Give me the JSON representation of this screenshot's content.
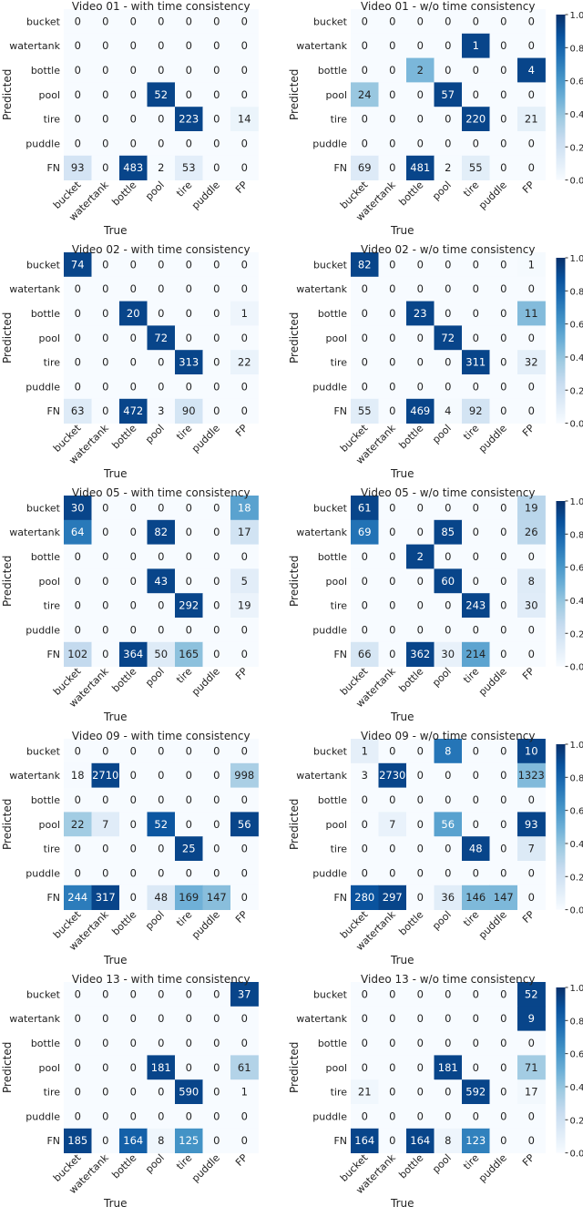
{
  "chart_data": [
    {
      "type": "heatmap",
      "title": "Video 01 - with time consistency",
      "xlabel": "True",
      "ylabel": "Predicted",
      "x_categories": [
        "bucket",
        "watertank",
        "bottle",
        "pool",
        "tire",
        "puddle",
        "FP"
      ],
      "y_categories": [
        "bucket",
        "watertank",
        "bottle",
        "pool",
        "tire",
        "puddle",
        "FN"
      ],
      "values": [
        [
          0,
          0,
          0,
          0,
          0,
          0,
          0
        ],
        [
          0,
          0,
          0,
          0,
          0,
          0,
          0
        ],
        [
          0,
          0,
          0,
          0,
          0,
          0,
          0
        ],
        [
          0,
          0,
          0,
          52,
          0,
          0,
          0
        ],
        [
          0,
          0,
          0,
          0,
          223,
          0,
          14
        ],
        [
          0,
          0,
          0,
          0,
          0,
          0,
          0
        ],
        [
          93,
          0,
          483,
          2,
          53,
          0,
          0
        ]
      ],
      "colorbar": false
    },
    {
      "type": "heatmap",
      "title": "Video 01 - w/o time consistency",
      "xlabel": "True",
      "ylabel": "Predicted",
      "x_categories": [
        "bucket",
        "watertank",
        "bottle",
        "pool",
        "tire",
        "puddle",
        "FP"
      ],
      "y_categories": [
        "bucket",
        "watertank",
        "bottle",
        "pool",
        "tire",
        "puddle",
        "FN"
      ],
      "values": [
        [
          0,
          0,
          0,
          0,
          0,
          0,
          0
        ],
        [
          0,
          0,
          0,
          0,
          1,
          0,
          0
        ],
        [
          0,
          0,
          2,
          0,
          0,
          0,
          4
        ],
        [
          24,
          0,
          0,
          57,
          0,
          0,
          0
        ],
        [
          0,
          0,
          0,
          0,
          220,
          0,
          21
        ],
        [
          0,
          0,
          0,
          0,
          0,
          0,
          0
        ],
        [
          69,
          0,
          481,
          2,
          55,
          0,
          0
        ]
      ],
      "colorbar": true,
      "colorbar_ticks": [
        "1.0",
        "0.8",
        "0.6",
        "0.4",
        "0.2",
        "0.0"
      ]
    },
    {
      "type": "heatmap",
      "title": "Video 02 - with time consistency",
      "xlabel": "True",
      "ylabel": "Predicted",
      "x_categories": [
        "bucket",
        "watertank",
        "bottle",
        "pool",
        "tire",
        "puddle",
        "FP"
      ],
      "y_categories": [
        "bucket",
        "watertank",
        "bottle",
        "pool",
        "tire",
        "puddle",
        "FN"
      ],
      "values": [
        [
          74,
          0,
          0,
          0,
          0,
          0,
          0
        ],
        [
          0,
          0,
          0,
          0,
          0,
          0,
          0
        ],
        [
          0,
          0,
          20,
          0,
          0,
          0,
          1
        ],
        [
          0,
          0,
          0,
          72,
          0,
          0,
          0
        ],
        [
          0,
          0,
          0,
          0,
          313,
          0,
          22
        ],
        [
          0,
          0,
          0,
          0,
          0,
          0,
          0
        ],
        [
          63,
          0,
          472,
          3,
          90,
          0,
          0
        ]
      ],
      "colorbar": false
    },
    {
      "type": "heatmap",
      "title": "Video 02 - w/o time consistency",
      "xlabel": "True",
      "ylabel": "Predicted",
      "x_categories": [
        "bucket",
        "watertank",
        "bottle",
        "pool",
        "tire",
        "puddle",
        "FP"
      ],
      "y_categories": [
        "bucket",
        "watertank",
        "bottle",
        "pool",
        "tire",
        "puddle",
        "FN"
      ],
      "values": [
        [
          82,
          0,
          0,
          0,
          0,
          0,
          1
        ],
        [
          0,
          0,
          0,
          0,
          0,
          0,
          0
        ],
        [
          0,
          0,
          23,
          0,
          0,
          0,
          11
        ],
        [
          0,
          0,
          0,
          72,
          0,
          0,
          0
        ],
        [
          0,
          0,
          0,
          0,
          311,
          0,
          32
        ],
        [
          0,
          0,
          0,
          0,
          0,
          0,
          0
        ],
        [
          55,
          0,
          469,
          4,
          92,
          0,
          0
        ]
      ],
      "colorbar": true,
      "colorbar_ticks": [
        "1.0",
        "0.8",
        "0.6",
        "0.4",
        "0.2",
        "0.0"
      ]
    },
    {
      "type": "heatmap",
      "title": "Video 05 - with time consistency",
      "xlabel": "True",
      "ylabel": "Predicted",
      "x_categories": [
        "bucket",
        "watertank",
        "bottle",
        "pool",
        "tire",
        "puddle",
        "FP"
      ],
      "y_categories": [
        "bucket",
        "watertank",
        "bottle",
        "pool",
        "tire",
        "puddle",
        "FN"
      ],
      "values": [
        [
          30,
          0,
          0,
          0,
          0,
          0,
          18
        ],
        [
          64,
          0,
          0,
          82,
          0,
          0,
          17
        ],
        [
          0,
          0,
          0,
          0,
          0,
          0,
          0
        ],
        [
          0,
          0,
          0,
          43,
          0,
          0,
          5
        ],
        [
          0,
          0,
          0,
          0,
          292,
          0,
          19
        ],
        [
          0,
          0,
          0,
          0,
          0,
          0,
          0
        ],
        [
          102,
          0,
          364,
          50,
          165,
          0,
          0
        ]
      ],
      "colorbar": false
    },
    {
      "type": "heatmap",
      "title": "Video 05 - w/o time consistency",
      "xlabel": "True",
      "ylabel": "Predicted",
      "x_categories": [
        "bucket",
        "watertank",
        "bottle",
        "pool",
        "tire",
        "puddle",
        "FP"
      ],
      "y_categories": [
        "bucket",
        "watertank",
        "bottle",
        "pool",
        "tire",
        "puddle",
        "FN"
      ],
      "values": [
        [
          61,
          0,
          0,
          0,
          0,
          0,
          19
        ],
        [
          69,
          0,
          0,
          85,
          0,
          0,
          26
        ],
        [
          0,
          0,
          2,
          0,
          0,
          0,
          0
        ],
        [
          0,
          0,
          0,
          60,
          0,
          0,
          8
        ],
        [
          0,
          0,
          0,
          0,
          243,
          0,
          30
        ],
        [
          0,
          0,
          0,
          0,
          0,
          0,
          0
        ],
        [
          66,
          0,
          362,
          30,
          214,
          0,
          0
        ]
      ],
      "colorbar": true,
      "colorbar_ticks": [
        "1.0",
        "0.8",
        "0.6",
        "0.4",
        "0.2",
        "0.0"
      ]
    },
    {
      "type": "heatmap",
      "title": "Video 09 - with time consistency",
      "xlabel": "True",
      "ylabel": "Predicted",
      "x_categories": [
        "bucket",
        "watertank",
        "bottle",
        "pool",
        "tire",
        "puddle",
        "FP"
      ],
      "y_categories": [
        "bucket",
        "watertank",
        "bottle",
        "pool",
        "tire",
        "puddle",
        "FN"
      ],
      "values": [
        [
          0,
          0,
          0,
          0,
          0,
          0,
          0
        ],
        [
          18,
          2710,
          0,
          0,
          0,
          0,
          998
        ],
        [
          0,
          0,
          0,
          0,
          0,
          0,
          0
        ],
        [
          22,
          7,
          0,
          52,
          0,
          0,
          56
        ],
        [
          0,
          0,
          0,
          0,
          25,
          0,
          0
        ],
        [
          0,
          0,
          0,
          0,
          0,
          0,
          0
        ],
        [
          244,
          317,
          0,
          48,
          169,
          147,
          0
        ]
      ],
      "colorbar": false
    },
    {
      "type": "heatmap",
      "title": "Video 09 - w/o time consistency",
      "xlabel": "True",
      "ylabel": "Predicted",
      "x_categories": [
        "bucket",
        "watertank",
        "bottle",
        "pool",
        "tire",
        "puddle",
        "FP"
      ],
      "y_categories": [
        "bucket",
        "watertank",
        "bottle",
        "pool",
        "tire",
        "puddle",
        "FN"
      ],
      "values": [
        [
          1,
          0,
          0,
          8,
          0,
          0,
          10
        ],
        [
          3,
          2730,
          0,
          0,
          0,
          0,
          1323
        ],
        [
          0,
          0,
          0,
          0,
          0,
          0,
          0
        ],
        [
          0,
          7,
          0,
          56,
          0,
          0,
          93
        ],
        [
          0,
          0,
          0,
          0,
          48,
          0,
          7
        ],
        [
          0,
          0,
          0,
          0,
          0,
          0,
          0
        ],
        [
          280,
          297,
          0,
          36,
          146,
          147,
          0
        ]
      ],
      "colorbar": true,
      "colorbar_ticks": [
        "1.0",
        "0.8",
        "0.6",
        "0.4",
        "0.2",
        "0.0"
      ]
    },
    {
      "type": "heatmap",
      "title": "Video 13 - with time consistency",
      "xlabel": "True",
      "ylabel": "Predicted",
      "x_categories": [
        "bucket",
        "watertank",
        "bottle",
        "pool",
        "tire",
        "puddle",
        "FP"
      ],
      "y_categories": [
        "bucket",
        "watertank",
        "bottle",
        "pool",
        "tire",
        "puddle",
        "FN"
      ],
      "values": [
        [
          0,
          0,
          0,
          0,
          0,
          0,
          37
        ],
        [
          0,
          0,
          0,
          0,
          0,
          0,
          0
        ],
        [
          0,
          0,
          0,
          0,
          0,
          0,
          0
        ],
        [
          0,
          0,
          0,
          181,
          0,
          0,
          61
        ],
        [
          0,
          0,
          0,
          0,
          590,
          0,
          1
        ],
        [
          0,
          0,
          0,
          0,
          0,
          0,
          0
        ],
        [
          185,
          0,
          164,
          8,
          125,
          0,
          0
        ]
      ],
      "colorbar": false
    },
    {
      "type": "heatmap",
      "title": "Video 13 - w/o time consistency",
      "xlabel": "True",
      "ylabel": "Predicted",
      "x_categories": [
        "bucket",
        "watertank",
        "bottle",
        "pool",
        "tire",
        "puddle",
        "FP"
      ],
      "y_categories": [
        "bucket",
        "watertank",
        "bottle",
        "pool",
        "tire",
        "puddle",
        "FN"
      ],
      "values": [
        [
          0,
          0,
          0,
          0,
          0,
          0,
          52
        ],
        [
          0,
          0,
          0,
          0,
          0,
          0,
          9
        ],
        [
          0,
          0,
          0,
          0,
          0,
          0,
          0
        ],
        [
          0,
          0,
          0,
          181,
          0,
          0,
          71
        ],
        [
          21,
          0,
          0,
          0,
          592,
          0,
          17
        ],
        [
          0,
          0,
          0,
          0,
          0,
          0,
          0
        ],
        [
          164,
          0,
          164,
          8,
          123,
          0,
          0
        ]
      ],
      "colorbar": true,
      "colorbar_ticks": [
        "1.0",
        "0.8",
        "0.6",
        "0.4",
        "0.2",
        "0.0"
      ]
    }
  ]
}
